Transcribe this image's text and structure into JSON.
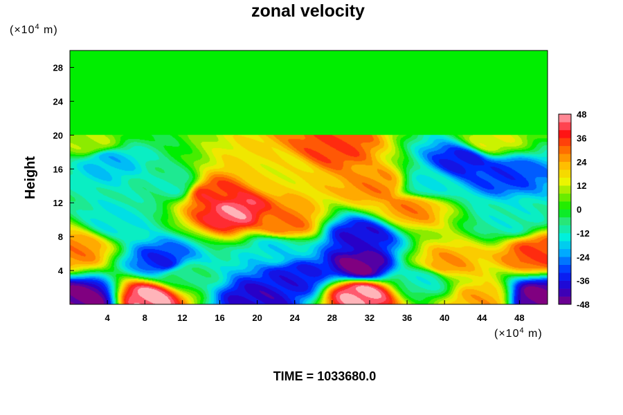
{
  "chart_data": {
    "type": "heatmap",
    "title": "zonal velocity",
    "ylabel": "Height",
    "x_unit": {
      "prefix": "(×10",
      "exp": "4",
      "suffix": " m)"
    },
    "y_unit": {
      "prefix": "(×10",
      "exp": "4",
      "suffix": " m)"
    },
    "xlim": [
      0,
      51
    ],
    "ylim": [
      0,
      30
    ],
    "x_ticks": [
      4,
      8,
      12,
      16,
      20,
      24,
      28,
      32,
      36,
      40,
      44,
      48
    ],
    "x_tick_labels": [
      "4",
      "8",
      "12",
      "16",
      "20",
      "24",
      "28",
      "32",
      "36",
      "40",
      "44",
      "48"
    ],
    "y_ticks": [
      4,
      8,
      12,
      16,
      20,
      24,
      28
    ],
    "y_tick_labels": [
      "4",
      "8",
      "12",
      "16",
      "20",
      "24",
      "28"
    ],
    "colorbar": {
      "range": [
        -48,
        48
      ],
      "ticks": [
        48,
        36,
        24,
        12,
        0,
        -12,
        -24,
        -36,
        -48
      ],
      "tick_labels": [
        "48",
        "36",
        "24",
        "12",
        "0",
        "-12",
        "-24",
        "-36",
        "-48"
      ],
      "colormap": "rainbow (purple → blue → cyan → green → yellow → red → pink)"
    },
    "time_label": "TIME = 1033680.0",
    "upper_layer": {
      "y_range": [
        20,
        30
      ],
      "approx_value": 0
    },
    "features": [
      {
        "x": 17.5,
        "y": 11,
        "value": 45
      },
      {
        "x": 15,
        "y": 13,
        "value": 36
      },
      {
        "x": 23,
        "y": 9.5,
        "value": 30
      },
      {
        "x": 28,
        "y": 18.5,
        "value": 34
      },
      {
        "x": 33,
        "y": 14,
        "value": 28
      },
      {
        "x": 36.5,
        "y": 11.5,
        "value": 28
      },
      {
        "x": 8.5,
        "y": 0.8,
        "value": 48
      },
      {
        "x": 31,
        "y": 1.2,
        "value": 48
      },
      {
        "x": 50,
        "y": 6,
        "value": 34
      },
      {
        "x": 0.5,
        "y": 6.5,
        "value": 28
      },
      {
        "x": 44,
        "y": 0.5,
        "value": 24
      },
      {
        "x": 40,
        "y": 4.7,
        "value": 26
      },
      {
        "x": 10,
        "y": 5.0,
        "value": -34
      },
      {
        "x": 31,
        "y": 8,
        "value": -38
      },
      {
        "x": 31,
        "y": 4.5,
        "value": -48
      },
      {
        "x": 42,
        "y": 17,
        "value": -36
      },
      {
        "x": 46,
        "y": 15.5,
        "value": -32
      },
      {
        "x": 1.5,
        "y": 0.6,
        "value": -48
      },
      {
        "x": 20,
        "y": 0.5,
        "value": -40
      },
      {
        "x": 50,
        "y": 0.8,
        "value": -48
      },
      {
        "x": 24,
        "y": 3.2,
        "value": -36
      },
      {
        "x": 4,
        "y": 17,
        "value": -20
      },
      {
        "x": 11,
        "y": 14,
        "value": -10
      },
      {
        "x": 5,
        "y": 10,
        "value": -14
      },
      {
        "x": 22,
        "y": 6.5,
        "value": -16
      },
      {
        "x": 38,
        "y": 14,
        "value": -14
      },
      {
        "x": 47,
        "y": 10,
        "value": -12
      },
      {
        "x": 22.5,
        "y": 15.5,
        "value": 16
      },
      {
        "x": 2.5,
        "y": 19,
        "value": 10
      },
      {
        "x": 45,
        "y": 19.3,
        "value": 14
      },
      {
        "x": 12,
        "y": 3.5,
        "value": -6
      },
      {
        "x": 38,
        "y": 3,
        "value": -12
      }
    ]
  }
}
